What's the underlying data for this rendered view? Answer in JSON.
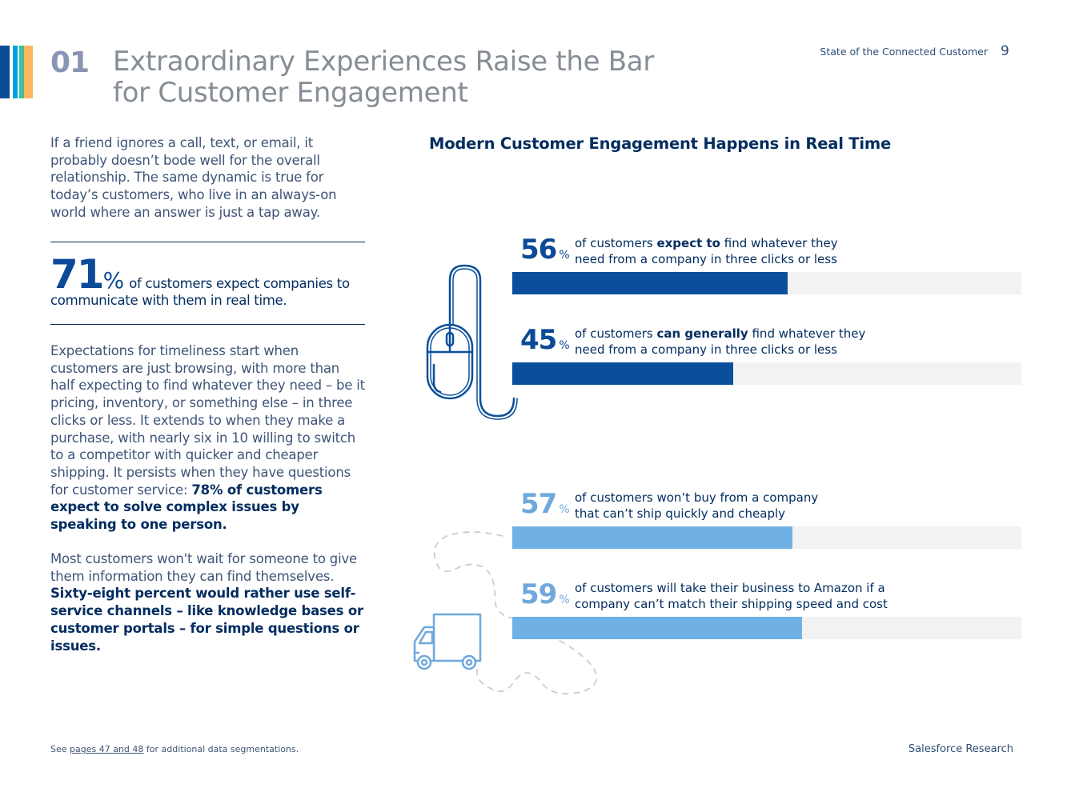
{
  "header": {
    "section_number": "01",
    "title_line1": "Extraordinary Experiences Raise the Bar",
    "title_line2": "for Customer Engagement",
    "report_name": "State of the Connected Customer",
    "page_number": "9",
    "stripe_colors": [
      "#0b4a96",
      "#00a1e0",
      "#3fbf9f",
      "#ffb75d"
    ]
  },
  "left": {
    "intro": "If a friend ignores a call, text, or email, it probably doesn’t bode well for the overall relationship. The same dynamic is true for today’s customers, who live in an always-on world where an answer is just a tap away.",
    "stat": {
      "value": "71",
      "unit": "%",
      "text_part1": "of customers expect companies to",
      "text_part2": "communicate with them in real time."
    },
    "paragraph1_plain": "Expectations for timeliness start when customers are just browsing, with more than half expecting to find whatever they need – be it pricing, inventory, or something else – in three clicks or less. It extends to when they make a purchase, with nearly six in 10 willing to switch to a competitor with quicker and cheaper shipping. It persists when they have questions for customer service: ",
    "paragraph1_bold": "78% of customers expect to solve complex issues by speaking to one person.",
    "paragraph2_plain": "Most customers won't wait for someone to give them information they can find themselves. ",
    "paragraph2_bold": "Sixty-eight percent would rather use self-service channels – like knowledge bases or customer portals – for simple questions or issues."
  },
  "chart_data": {
    "type": "bar",
    "title": "Modern Customer Engagement Happens in Real Time",
    "unit": "%",
    "xlim": [
      0,
      100
    ],
    "series": [
      {
        "value": 56,
        "color": "#0b4f9c",
        "label_pre": "of customers ",
        "label_bold": "expect to",
        "label_post": " find whatever they",
        "label_line2": "need from a company in three clicks or less"
      },
      {
        "value": 45,
        "color": "#0b4f9c",
        "label_pre": "of customers ",
        "label_bold": "can generally",
        "label_post": " find whatever they",
        "label_line2": "need from a company in three clicks or less"
      },
      {
        "value": 57,
        "color": "#6fb1e4",
        "label_pre": "of customers won’t buy from a company",
        "label_bold": "",
        "label_post": "",
        "label_line2": "that can’t ship quickly and cheaply"
      },
      {
        "value": 59,
        "color": "#6fb1e4",
        "label_pre": "of customers will take their business to Amazon if a",
        "label_bold": "",
        "label_post": "",
        "label_line2": "company can’t match their shipping speed and cost"
      }
    ],
    "icons": [
      "computer-mouse-icon",
      "delivery-truck-icon"
    ]
  },
  "footer": {
    "note_pre": "See ",
    "note_link": "pages 47 and 48",
    "note_post": " for additional data segmentations.",
    "brand": "Salesforce Research"
  }
}
